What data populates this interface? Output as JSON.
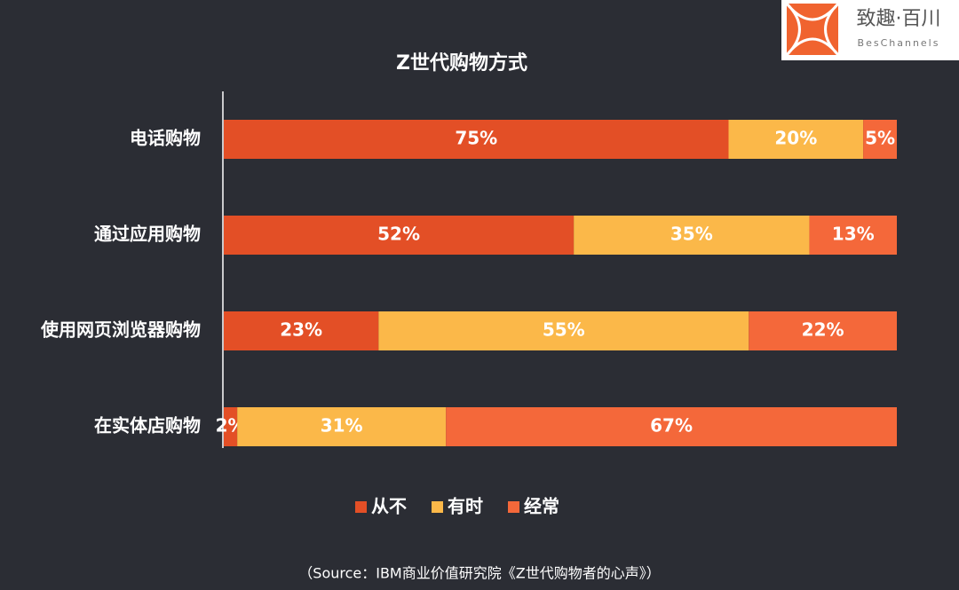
{
  "chart_data": {
    "type": "stacked-bar-horizontal",
    "title": "Z世代购物方式",
    "categories": [
      "电话购物",
      "通过应用购物",
      "使用网页浏览器购物",
      "在实体店购物"
    ],
    "series": [
      {
        "name": "从不",
        "color": "#e34f26",
        "values": [
          75,
          52,
          23,
          2
        ],
        "value_labels": [
          "75%",
          "52%",
          "23%",
          "2%"
        ]
      },
      {
        "name": "有时",
        "color": "#fbb849",
        "values": [
          20,
          35,
          55,
          31
        ],
        "value_labels": [
          "20%",
          "35%",
          "55%",
          "31%"
        ]
      },
      {
        "name": "经常",
        "color": "#f4683a",
        "values": [
          5,
          13,
          22,
          67
        ],
        "value_labels": [
          "5%",
          "13%",
          "22%",
          "67%"
        ]
      }
    ],
    "xlim": [
      0,
      100
    ],
    "source": "（Source：IBM商业价值研究院《Z世代购物者的心声》）"
  },
  "logo": {
    "name": "致趣·百川",
    "subtitle": "BesChannels"
  }
}
